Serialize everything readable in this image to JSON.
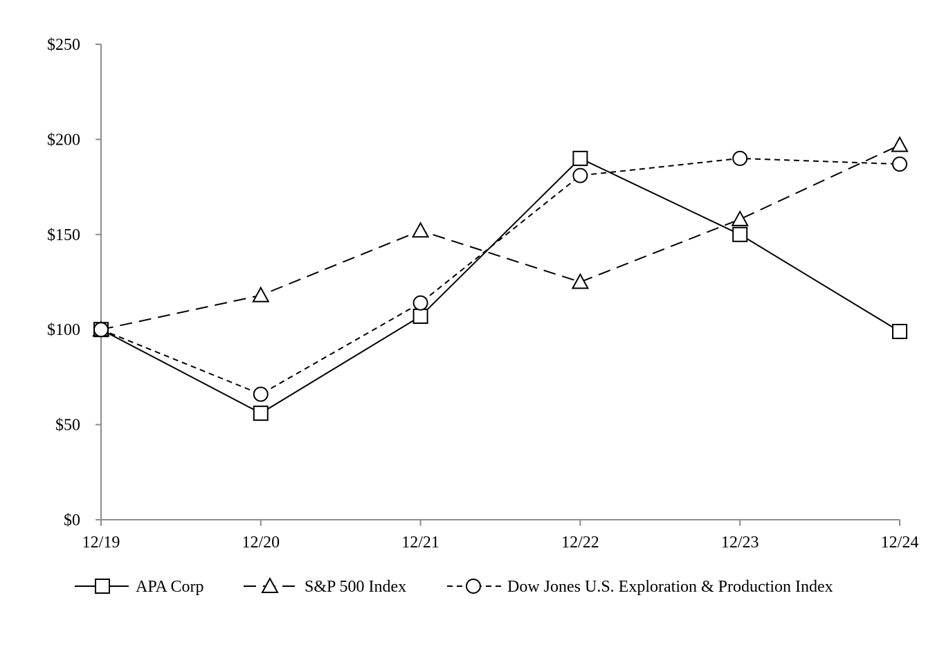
{
  "chart_data": {
    "type": "line",
    "x": [
      "12/19",
      "12/20",
      "12/21",
      "12/22",
      "12/23",
      "12/24"
    ],
    "y_ticks": [
      "$0",
      "$50",
      "$100",
      "$150",
      "$200",
      "$250"
    ],
    "y_tick_values": [
      0,
      50,
      100,
      150,
      200,
      250
    ],
    "ylim": [
      0,
      250
    ],
    "grid": false,
    "legend_position": "bottom",
    "series": [
      {
        "name": "APA Corp",
        "marker": "square",
        "dash": "solid",
        "values": [
          100,
          56,
          107,
          190,
          150,
          99
        ]
      },
      {
        "name": "S&P 500 Index",
        "marker": "triangle",
        "dash": "long-dash",
        "values": [
          100,
          118,
          152,
          125,
          158,
          197
        ]
      },
      {
        "name": "Dow Jones U.S. Exploration & Production Index",
        "marker": "circle",
        "dash": "short-dash",
        "values": [
          100,
          66,
          114,
          181,
          190,
          187
        ]
      }
    ]
  }
}
